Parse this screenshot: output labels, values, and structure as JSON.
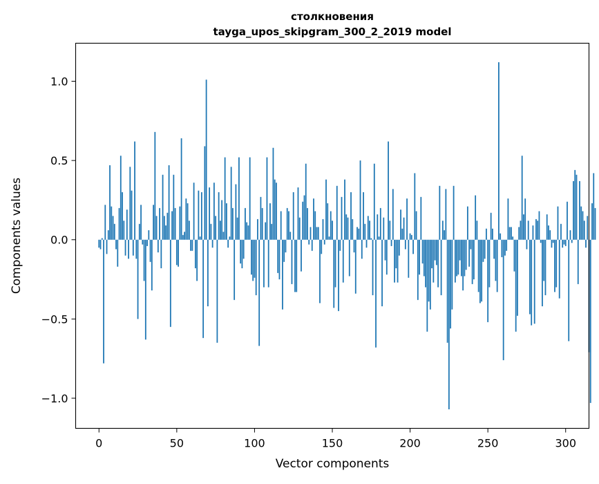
{
  "chart_data": {
    "type": "bar",
    "title_line1": "столкновения",
    "title_line2": "tayga_upos_skipgram_300_2_2019 model",
    "xlabel": "Vector components",
    "ylabel": "Components values",
    "xlim": [
      -15,
      315
    ],
    "ylim": [
      -1.19,
      1.24
    ],
    "xticks": [
      0,
      50,
      100,
      150,
      200,
      250,
      300
    ],
    "xtick_labels": [
      "0",
      "50",
      "100",
      "150",
      "200",
      "250",
      "300"
    ],
    "yticks": [
      -1.0,
      -0.5,
      0.0,
      0.5,
      1.0
    ],
    "ytick_labels": [
      "−1.0",
      "−0.5",
      "0.0",
      "0.5",
      "1.0"
    ],
    "bar_color": "#1f77b4",
    "values": [
      -0.05,
      -0.06,
      0.01,
      -0.78,
      0.22,
      -0.09,
      0.06,
      0.47,
      0.21,
      0.15,
      0.1,
      -0.06,
      -0.17,
      0.2,
      0.53,
      0.3,
      0.12,
      -0.1,
      0.19,
      -0.12,
      0.46,
      0.31,
      -0.1,
      0.62,
      -0.12,
      -0.5,
      0.1,
      0.22,
      -0.03,
      -0.26,
      -0.63,
      -0.04,
      0.06,
      -0.14,
      -0.32,
      0.22,
      0.68,
      0.15,
      -0.08,
      0.2,
      -0.18,
      0.41,
      0.15,
      0.09,
      0.17,
      0.47,
      -0.55,
      0.18,
      0.41,
      0.2,
      -0.16,
      -0.17,
      0.21,
      0.64,
      0.03,
      0.05,
      0.26,
      0.23,
      0.12,
      -0.07,
      -0.07,
      0.36,
      -0.18,
      -0.26,
      0.31,
      0.02,
      0.3,
      -0.62,
      0.59,
      1.01,
      -0.42,
      0.33,
      0.1,
      -0.05,
      0.36,
      0.15,
      -0.65,
      0.3,
      0.12,
      0.25,
      0.05,
      0.52,
      0.23,
      -0.05,
      0.02,
      0.46,
      0.2,
      -0.38,
      0.35,
      0.14,
      0.52,
      -0.15,
      -0.18,
      -0.12,
      0.2,
      0.11,
      0.09,
      0.52,
      -0.22,
      -0.26,
      -0.24,
      -0.35,
      0.13,
      -0.67,
      0.27,
      0.2,
      -0.3,
      0.11,
      0.52,
      -0.3,
      0.23,
      0.1,
      0.58,
      0.38,
      0.36,
      -0.21,
      -0.25,
      0.18,
      -0.44,
      -0.14,
      -0.08,
      0.2,
      0.18,
      0.05,
      -0.28,
      0.3,
      -0.33,
      -0.33,
      0.33,
      0.14,
      -0.2,
      0.24,
      0.28,
      0.48,
      0.2,
      -0.03,
      0.08,
      -0.07,
      0.26,
      0.18,
      0.08,
      0.08,
      -0.4,
      -0.09,
      0.13,
      -0.03,
      0.38,
      0.23,
      0.02,
      0.18,
      0.12,
      -0.43,
      -0.3,
      0.34,
      -0.45,
      -0.07,
      0.27,
      -0.27,
      0.38,
      0.16,
      0.14,
      -0.23,
      0.3,
      0.13,
      -0.08,
      -0.34,
      0.08,
      0.07,
      0.5,
      -0.12,
      0.3,
      0.1,
      -0.05,
      0.15,
      0.12,
      0.01,
      -0.35,
      0.48,
      -0.68,
      0.16,
      0.02,
      0.2,
      -0.42,
      0.14,
      -0.13,
      -0.22,
      0.62,
      0.12,
      -0.04,
      0.32,
      -0.27,
      -0.18,
      -0.27,
      -0.1,
      0.19,
      0.07,
      0.14,
      -0.06,
      0.26,
      -0.24,
      0.04,
      0.03,
      -0.09,
      0.42,
      0.18,
      -0.38,
      -0.22,
      0.27,
      -0.15,
      -0.23,
      -0.3,
      -0.58,
      -0.39,
      -0.44,
      -0.18,
      -0.27,
      -0.13,
      -0.16,
      -0.3,
      0.34,
      -0.35,
      0.12,
      0.06,
      0.32,
      -0.65,
      -1.07,
      -0.56,
      -0.44,
      0.34,
      -0.27,
      -0.23,
      -0.22,
      -0.13,
      -0.23,
      -0.32,
      -0.23,
      -0.19,
      0.21,
      -0.17,
      -0.06,
      -0.28,
      -0.25,
      0.28,
      0.12,
      -0.33,
      -0.4,
      -0.39,
      -0.14,
      -0.12,
      0.07,
      -0.52,
      -0.3,
      0.17,
      0.07,
      -0.12,
      -0.26,
      -0.33,
      1.12,
      0.04,
      -0.11,
      -0.76,
      -0.1,
      -0.07,
      0.26,
      0.08,
      0.08,
      0.02,
      -0.2,
      -0.58,
      -0.48,
      0.08,
      0.12,
      0.53,
      0.16,
      0.26,
      -0.06,
      0.12,
      -0.47,
      -0.54,
      0.09,
      -0.53,
      0.13,
      0.12,
      0.18,
      -0.02,
      -0.42,
      -0.26,
      -0.35,
      0.16,
      0.09,
      0.06,
      -0.05,
      -0.02,
      -0.33,
      -0.3,
      0.21,
      -0.37,
      0.1,
      -0.05,
      -0.03,
      -0.04,
      0.24,
      -0.64,
      0.06,
      -0.02,
      0.37,
      0.44,
      0.41,
      -0.28,
      0.37,
      0.21,
      0.18,
      0.12,
      -0.05,
      0.15,
      -0.71,
      -1.03,
      0.23,
      0.42,
      0.2
    ]
  }
}
